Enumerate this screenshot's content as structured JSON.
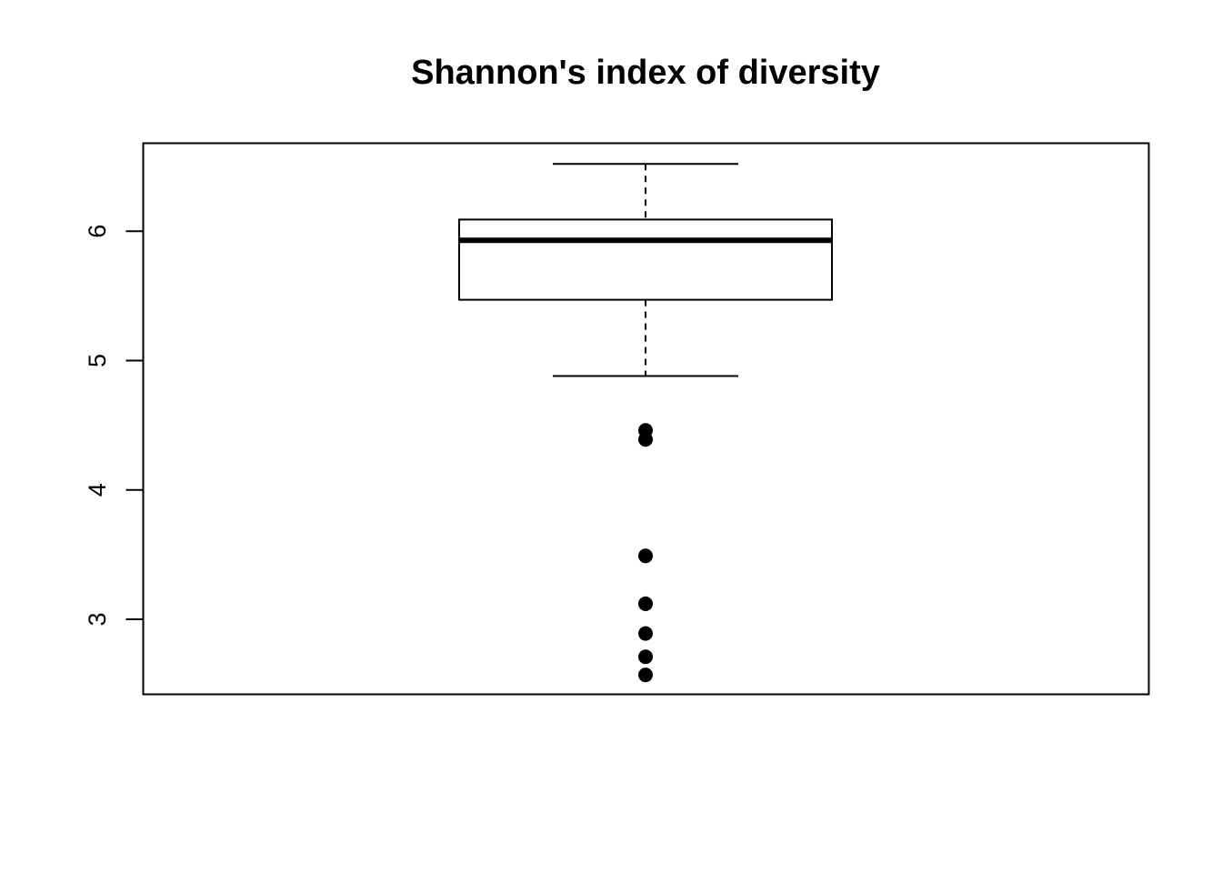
{
  "chart_data": {
    "type": "boxplot",
    "title": "Shannon's index of diversity",
    "xlabel": "",
    "ylabel": "",
    "ylim": [
      2.42,
      6.68
    ],
    "yticks": [
      3,
      4,
      5,
      6
    ],
    "grid": false,
    "box": {
      "lower_whisker": 4.88,
      "q1": 5.47,
      "median": 5.93,
      "q3": 6.09,
      "upper_whisker": 6.52
    },
    "outliers": [
      4.46,
      4.39,
      3.49,
      3.12,
      2.89,
      2.71,
      2.57
    ],
    "colors": {
      "stroke": "#000000",
      "background": "#ffffff"
    }
  }
}
